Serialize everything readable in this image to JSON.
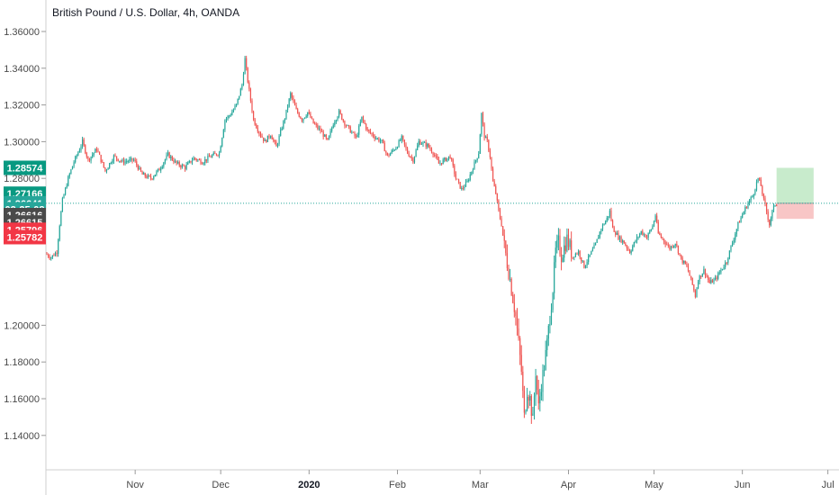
{
  "header": {
    "title": "British Pound / U.S. Dollar, 4h, OANDA"
  },
  "chart_data": {
    "type": "candlestick",
    "title": "British Pound / U.S. Dollar, 4h, OANDA",
    "ylim": [
      1.125,
      1.37
    ],
    "y_ticks": [
      "1.36000",
      "1.34000",
      "1.32000",
      "1.30000",
      "1.28000",
      "1.20000",
      "1.18000",
      "1.16000",
      "1.14000"
    ],
    "x_ticks": [
      {
        "label": "Nov",
        "bold": false,
        "day": 31
      },
      {
        "label": "Dec",
        "bold": false,
        "day": 61
      },
      {
        "label": "2020",
        "bold": true,
        "day": 92
      },
      {
        "label": "Feb",
        "bold": false,
        "day": 123
      },
      {
        "label": "Mar",
        "bold": false,
        "day": 152
      },
      {
        "label": "Apr",
        "bold": false,
        "day": 183
      },
      {
        "label": "May",
        "bold": false,
        "day": 213
      },
      {
        "label": "Jun",
        "bold": false,
        "day": 244
      },
      {
        "label": "Jul",
        "bold": false,
        "day": 274
      }
    ],
    "price_path": [
      [
        0,
        1.239
      ],
      [
        2,
        1.237
      ],
      [
        4,
        1.24
      ],
      [
        5,
        1.255
      ],
      [
        6,
        1.268
      ],
      [
        8,
        1.28
      ],
      [
        10,
        1.289
      ],
      [
        12,
        1.296
      ],
      [
        13,
        1.3
      ],
      [
        15,
        1.29
      ],
      [
        18,
        1.296
      ],
      [
        21,
        1.284
      ],
      [
        24,
        1.292
      ],
      [
        27,
        1.289
      ],
      [
        31,
        1.29
      ],
      [
        34,
        1.282
      ],
      [
        37,
        1.28
      ],
      [
        40,
        1.285
      ],
      [
        43,
        1.293
      ],
      [
        46,
        1.288
      ],
      [
        49,
        1.286
      ],
      [
        52,
        1.291
      ],
      [
        55,
        1.289
      ],
      [
        58,
        1.292
      ],
      [
        61,
        1.294
      ],
      [
        63,
        1.312
      ],
      [
        65,
        1.315
      ],
      [
        67,
        1.32
      ],
      [
        69,
        1.331
      ],
      [
        70,
        1.345
      ],
      [
        71,
        1.333
      ],
      [
        73,
        1.312
      ],
      [
        75,
        1.305
      ],
      [
        77,
        1.3
      ],
      [
        79,
        1.304
      ],
      [
        81,
        1.297
      ],
      [
        83,
        1.308
      ],
      [
        84,
        1.313
      ],
      [
        86,
        1.326
      ],
      [
        88,
        1.317
      ],
      [
        90,
        1.312
      ],
      [
        92,
        1.316
      ],
      [
        94,
        1.31
      ],
      [
        97,
        1.305
      ],
      [
        99,
        1.3
      ],
      [
        101,
        1.31
      ],
      [
        103,
        1.316
      ],
      [
        105,
        1.31
      ],
      [
        107,
        1.306
      ],
      [
        109,
        1.302
      ],
      [
        111,
        1.313
      ],
      [
        113,
        1.306
      ],
      [
        116,
        1.302
      ],
      [
        118,
        1.3
      ],
      [
        120,
        1.292
      ],
      [
        123,
        1.297
      ],
      [
        125,
        1.302
      ],
      [
        127,
        1.294
      ],
      [
        129,
        1.29
      ],
      [
        131,
        1.3
      ],
      [
        134,
        1.298
      ],
      [
        136,
        1.294
      ],
      [
        138,
        1.288
      ],
      [
        140,
        1.29
      ],
      [
        142,
        1.292
      ],
      [
        144,
        1.28
      ],
      [
        146,
        1.274
      ],
      [
        148,
        1.278
      ],
      [
        150,
        1.286
      ],
      [
        152,
        1.294
      ],
      [
        153,
        1.315
      ],
      [
        154,
        1.303
      ],
      [
        155,
        1.3
      ],
      [
        156,
        1.292
      ],
      [
        157,
        1.278
      ],
      [
        158,
        1.272
      ],
      [
        159,
        1.262
      ],
      [
        160,
        1.255
      ],
      [
        161,
        1.243
      ],
      [
        163,
        1.225
      ],
      [
        165,
        1.205
      ],
      [
        167,
        1.175
      ],
      [
        168,
        1.15
      ],
      [
        169,
        1.165
      ],
      [
        170,
        1.16
      ],
      [
        171,
        1.148
      ],
      [
        172,
        1.175
      ],
      [
        173,
        1.155
      ],
      [
        174,
        1.168
      ],
      [
        175,
        1.178
      ],
      [
        176,
        1.19
      ],
      [
        177,
        1.205
      ],
      [
        178,
        1.22
      ],
      [
        179,
        1.24
      ],
      [
        180,
        1.245
      ],
      [
        181,
        1.238
      ],
      [
        183,
        1.247
      ],
      [
        185,
        1.238
      ],
      [
        187,
        1.24
      ],
      [
        189,
        1.232
      ],
      [
        191,
        1.238
      ],
      [
        193,
        1.244
      ],
      [
        195,
        1.253
      ],
      [
        197,
        1.258
      ],
      [
        198,
        1.262
      ],
      [
        199,
        1.253
      ],
      [
        201,
        1.248
      ],
      [
        203,
        1.245
      ],
      [
        205,
        1.24
      ],
      [
        207,
        1.246
      ],
      [
        209,
        1.251
      ],
      [
        211,
        1.248
      ],
      [
        213,
        1.254
      ],
      [
        214,
        1.26
      ],
      [
        215,
        1.25
      ],
      [
        217,
        1.246
      ],
      [
        219,
        1.242
      ],
      [
        221,
        1.245
      ],
      [
        223,
        1.236
      ],
      [
        225,
        1.232
      ],
      [
        227,
        1.222
      ],
      [
        228,
        1.216
      ],
      [
        229,
        1.225
      ],
      [
        231,
        1.23
      ],
      [
        233,
        1.223
      ],
      [
        235,
        1.225
      ],
      [
        237,
        1.23
      ],
      [
        239,
        1.235
      ],
      [
        241,
        1.245
      ],
      [
        243,
        1.255
      ],
      [
        245,
        1.262
      ],
      [
        247,
        1.268
      ],
      [
        248,
        1.27
      ],
      [
        249,
        1.275
      ],
      [
        250,
        1.28
      ],
      [
        251,
        1.276
      ],
      [
        252,
        1.268
      ],
      [
        253,
        1.262
      ],
      [
        254,
        1.255
      ],
      [
        255,
        1.262
      ],
      [
        256,
        1.266
      ]
    ],
    "current_price": 1.26641,
    "position": {
      "entry": 1.26641,
      "target": 1.28574,
      "stop": 1.25796,
      "start_day": 256,
      "end_day": 269
    },
    "price_tags": [
      {
        "label": "1.28574",
        "price": 1.28574,
        "color": "#089981"
      },
      {
        "label": "1.27166",
        "price": 1.27166,
        "color": "#089981"
      },
      {
        "label": "1.26641",
        "price": 1.26641,
        "color": "#26a69a"
      },
      {
        "label": "02:25:08",
        "price": 1.2632,
        "color": "#26a69a"
      },
      {
        "label": "1.26616",
        "price": 1.26,
        "color": "#4a4a4a"
      },
      {
        "label": "1.26615",
        "price": 1.256,
        "color": "#4a4a4a"
      },
      {
        "label": "1.25796",
        "price": 1.252,
        "color": "#f23645"
      },
      {
        "label": "1.25782",
        "price": 1.248,
        "color": "#f23645"
      }
    ],
    "colors": {
      "up": "#26a69a",
      "down": "#ef5350",
      "target_zone": "#c8ebcc",
      "stop_zone": "#f8c6c6",
      "price_line": "#26a69a",
      "grid": "#e6e6e6"
    },
    "grid": false,
    "legend": "none"
  }
}
